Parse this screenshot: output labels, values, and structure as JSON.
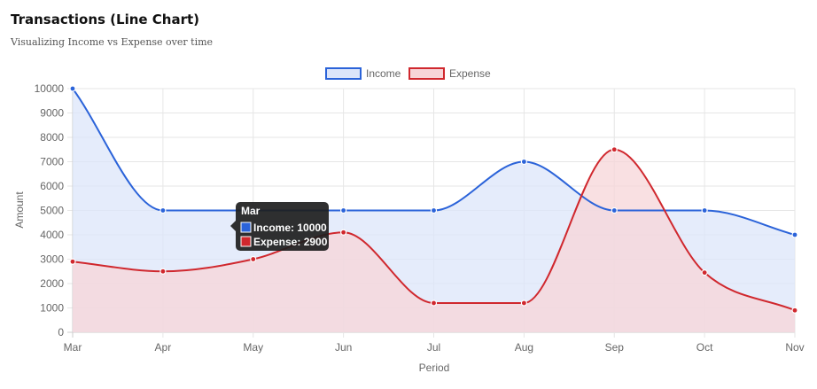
{
  "header": {
    "title": "Transactions (Line Chart)",
    "subtitle": "Visualizing Income vs Expense over time"
  },
  "chart_data": {
    "type": "line",
    "title": "",
    "xlabel": "Period",
    "ylabel": "Amount",
    "categories": [
      "Mar",
      "Apr",
      "May",
      "Jun",
      "Jul",
      "Aug",
      "Sep",
      "Oct",
      "Nov"
    ],
    "ylim": [
      0,
      10000
    ],
    "yticks": [
      0,
      1000,
      2000,
      3000,
      4000,
      5000,
      6000,
      7000,
      8000,
      9000,
      10000
    ],
    "grid": true,
    "legend": "top-center",
    "fill": true,
    "smooth": true,
    "series": [
      {
        "name": "Income",
        "values": [
          10000,
          5000,
          5000,
          5000,
          5000,
          7000,
          5000,
          5000,
          4000
        ],
        "color": "#2b63d9",
        "fill": "#dce5fa"
      },
      {
        "name": "Expense",
        "values": [
          2900,
          2500,
          3000,
          4100,
          1200,
          1200,
          7500,
          2450,
          900
        ],
        "color": "#d0282e",
        "fill": "#f7d5d8"
      }
    ],
    "tooltip": {
      "title": "Mar",
      "lines": [
        "Income: 10000",
        "Expense: 2900"
      ]
    }
  }
}
